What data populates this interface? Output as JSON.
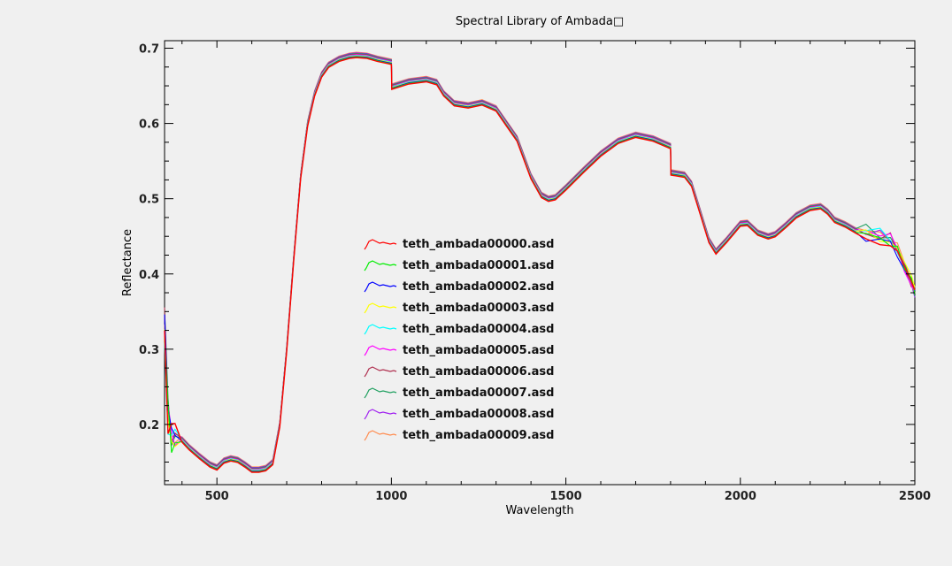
{
  "chart_data": {
    "type": "line",
    "title": "Spectral Library of Ambada□",
    "xlabel": "Wavelength",
    "ylabel": "Reflectance",
    "xlim": [
      350,
      2500
    ],
    "ylim": [
      0.12,
      0.71
    ],
    "xticks": [
      500,
      1000,
      1500,
      2000,
      2500
    ],
    "yticks": [
      0.2,
      0.3,
      0.4,
      0.5,
      0.6,
      0.7
    ],
    "grid": false,
    "legend_position": "center",
    "series": [
      {
        "name": "teth_ambada00000.asd",
        "color": "#ff0000"
      },
      {
        "name": "teth_ambada00001.asd",
        "color": "#00ee00"
      },
      {
        "name": "teth_ambada00002.asd",
        "color": "#0000ff"
      },
      {
        "name": "teth_ambada00003.asd",
        "color": "#ffff00"
      },
      {
        "name": "teth_ambada00004.asd",
        "color": "#00ffff"
      },
      {
        "name": "teth_ambada00005.asd",
        "color": "#ff00ff"
      },
      {
        "name": "teth_ambada00006.asd",
        "color": "#b03050"
      },
      {
        "name": "teth_ambada00007.asd",
        "color": "#20a060"
      },
      {
        "name": "teth_ambada00008.asd",
        "color": "#a020f0"
      },
      {
        "name": "teth_ambada00009.asd",
        "color": "#ff8c50"
      }
    ],
    "x": [
      350,
      360,
      370,
      380,
      400,
      420,
      450,
      480,
      500,
      520,
      540,
      560,
      580,
      600,
      620,
      640,
      660,
      680,
      700,
      720,
      740,
      760,
      780,
      800,
      820,
      850,
      880,
      900,
      930,
      960,
      990,
      1000,
      1001,
      1050,
      1100,
      1130,
      1150,
      1180,
      1220,
      1260,
      1300,
      1330,
      1360,
      1400,
      1430,
      1450,
      1470,
      1500,
      1550,
      1600,
      1650,
      1700,
      1750,
      1790,
      1800,
      1801,
      1840,
      1860,
      1880,
      1910,
      1930,
      1960,
      2000,
      2020,
      2050,
      2080,
      2100,
      2130,
      2160,
      2200,
      2230,
      2250,
      2270,
      2300,
      2330,
      2360,
      2400,
      2430,
      2450,
      2470,
      2490,
      2500
    ],
    "y": [
      0.33,
      0.21,
      0.19,
      0.185,
      0.18,
      0.17,
      0.158,
      0.147,
      0.143,
      0.152,
      0.155,
      0.153,
      0.147,
      0.14,
      0.14,
      0.142,
      0.15,
      0.2,
      0.3,
      0.42,
      0.53,
      0.6,
      0.64,
      0.665,
      0.678,
      0.686,
      0.69,
      0.691,
      0.69,
      0.686,
      0.683,
      0.682,
      0.649,
      0.656,
      0.659,
      0.655,
      0.64,
      0.627,
      0.624,
      0.628,
      0.62,
      0.6,
      0.58,
      0.53,
      0.505,
      0.5,
      0.502,
      0.515,
      0.538,
      0.56,
      0.577,
      0.585,
      0.58,
      0.572,
      0.57,
      0.535,
      0.532,
      0.52,
      0.49,
      0.445,
      0.43,
      0.445,
      0.467,
      0.468,
      0.455,
      0.45,
      0.453,
      0.465,
      0.478,
      0.488,
      0.49,
      0.483,
      0.472,
      0.466,
      0.458,
      0.455,
      0.452,
      0.448,
      0.43,
      0.41,
      0.39,
      0.375
    ]
  }
}
